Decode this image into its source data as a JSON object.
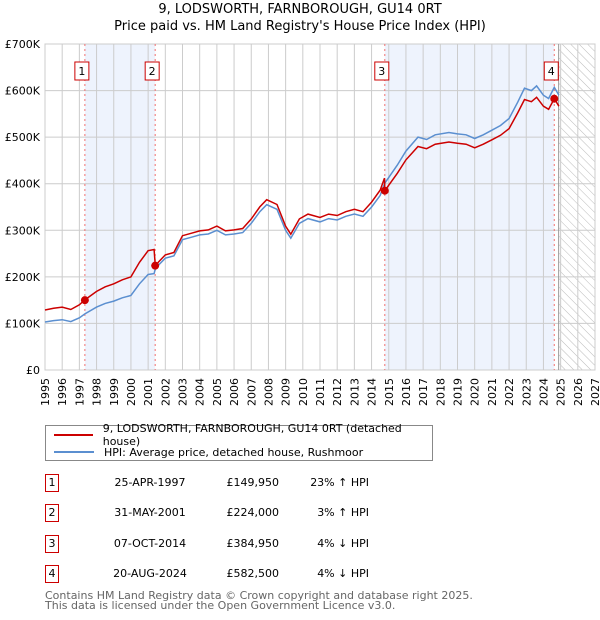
{
  "chart_data": {
    "type": "line",
    "title": "9, LODSWORTH, FARNBOROUGH, GU14 0RT",
    "subtitle": "Price paid vs. HM Land Registry's House Price Index (HPI)",
    "xlim": [
      1995,
      2027
    ],
    "ylim": [
      0,
      700000
    ],
    "yticks": [
      {
        "v": 0,
        "label": "£0"
      },
      {
        "v": 100000,
        "label": "£100K"
      },
      {
        "v": 200000,
        "label": "£200K"
      },
      {
        "v": 300000,
        "label": "£300K"
      },
      {
        "v": 400000,
        "label": "£400K"
      },
      {
        "v": 500000,
        "label": "£500K"
      },
      {
        "v": 600000,
        "label": "£600K"
      },
      {
        "v": 700000,
        "label": "£700K"
      }
    ],
    "xticks": [
      "1995",
      "1996",
      "1997",
      "1998",
      "1999",
      "2000",
      "2001",
      "2002",
      "2003",
      "2004",
      "2005",
      "2006",
      "2007",
      "2008",
      "2009",
      "2010",
      "2011",
      "2012",
      "2013",
      "2014",
      "2015",
      "2016",
      "2017",
      "2018",
      "2019",
      "2020",
      "2021",
      "2022",
      "2023",
      "2024",
      "2025",
      "2026",
      "2027"
    ],
    "grid": true,
    "forecast_from": 2025,
    "colors": {
      "property": "#cc0000",
      "hpi": "#5b8fd0",
      "band": "#eef3fd"
    },
    "hpi_series": [
      [
        1995.0,
        103
      ],
      [
        1995.5,
        106
      ],
      [
        1996.0,
        108
      ],
      [
        1996.5,
        104
      ],
      [
        1997.0,
        112
      ],
      [
        1997.3,
        120
      ],
      [
        1998.0,
        135
      ],
      [
        1998.5,
        143
      ],
      [
        1999.0,
        148
      ],
      [
        1999.5,
        155
      ],
      [
        2000.0,
        160
      ],
      [
        2000.5,
        185
      ],
      [
        2001.0,
        205
      ],
      [
        2001.35,
        207
      ],
      [
        2001.42,
        217
      ],
      [
        2001.6,
        225
      ],
      [
        2002.0,
        240
      ],
      [
        2002.5,
        245
      ],
      [
        2003.0,
        280
      ],
      [
        2003.5,
        285
      ],
      [
        2004.0,
        290
      ],
      [
        2004.5,
        292
      ],
      [
        2005.0,
        300
      ],
      [
        2005.5,
        290
      ],
      [
        2006.0,
        292
      ],
      [
        2006.5,
        295
      ],
      [
        2007.0,
        315
      ],
      [
        2007.5,
        340
      ],
      [
        2007.9,
        355
      ],
      [
        2008.5,
        345
      ],
      [
        2009.0,
        300
      ],
      [
        2009.3,
        283
      ],
      [
        2009.8,
        315
      ],
      [
        2010.3,
        325
      ],
      [
        2011.0,
        318
      ],
      [
        2011.5,
        325
      ],
      [
        2012.0,
        322
      ],
      [
        2012.5,
        330
      ],
      [
        2013.0,
        335
      ],
      [
        2013.5,
        330
      ],
      [
        2014.0,
        350
      ],
      [
        2014.5,
        375
      ],
      [
        2014.75,
        400
      ],
      [
        2014.77,
        401
      ],
      [
        2015.5,
        440
      ],
      [
        2016.0,
        470
      ],
      [
        2016.7,
        500
      ],
      [
        2017.2,
        495
      ],
      [
        2017.7,
        505
      ],
      [
        2018.5,
        510
      ],
      [
        2019.0,
        507
      ],
      [
        2019.5,
        505
      ],
      [
        2020.0,
        497
      ],
      [
        2020.5,
        505
      ],
      [
        2021.0,
        515
      ],
      [
        2021.5,
        525
      ],
      [
        2022.0,
        540
      ],
      [
        2022.5,
        575
      ],
      [
        2022.9,
        605
      ],
      [
        2023.3,
        600
      ],
      [
        2023.6,
        610
      ],
      [
        2024.0,
        590
      ],
      [
        2024.3,
        583
      ],
      [
        2024.63,
        607
      ],
      [
        2024.9,
        590
      ]
    ],
    "property_index_ratio": [
      {
        "until": 2001.4,
        "ratio": 1.25
      },
      {
        "until": 2014.76,
        "ratio": 1.03
      },
      {
        "until": 2027,
        "ratio": 0.96
      }
    ],
    "sales": [
      {
        "n": "1",
        "x": 1997.32,
        "date": "25-APR-1997",
        "price": "£149,950",
        "value": 149950,
        "hpi": "23% ↑ HPI"
      },
      {
        "n": "2",
        "x": 2001.41,
        "date": "31-MAY-2001",
        "price": "£224,000",
        "value": 224000,
        "hpi": "3% ↑ HPI"
      },
      {
        "n": "3",
        "x": 2014.77,
        "date": "07-OCT-2014",
        "price": "£384,950",
        "value": 384950,
        "hpi": "4% ↓ HPI"
      },
      {
        "n": "4",
        "x": 2024.63,
        "date": "20-AUG-2024",
        "price": "£582,500",
        "value": 582500,
        "hpi": "4% ↓ HPI"
      }
    ],
    "legend": [
      "9, LODSWORTH, FARNBOROUGH, GU14 0RT (detached house)",
      "HPI: Average price, detached house, Rushmoor"
    ]
  },
  "footer": [
    "Contains HM Land Registry data © Crown copyright and database right 2025.",
    "This data is licensed under the Open Government Licence v3.0."
  ]
}
